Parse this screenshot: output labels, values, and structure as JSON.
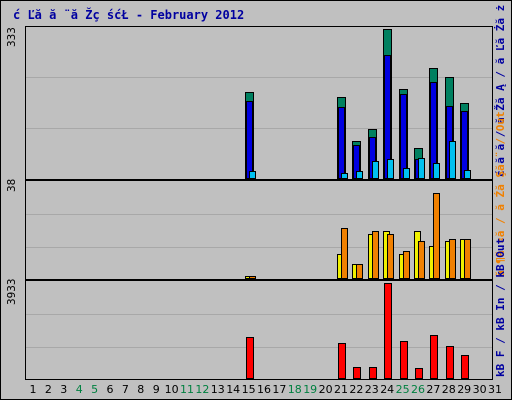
{
  "title": "ć Ľă  ă ¨ă Žç śćŁ  - February 2012",
  "colors": {
    "hits": "#0000e0",
    "files": "#008060",
    "pages": "#00c0f0",
    "visits": "#f0f000",
    "sites": "#f08000",
    "kbytes": "#ff0000",
    "weekend_label": "#008040"
  },
  "panels": {
    "top": {
      "ymax": "333"
    },
    "middle": {
      "ymax": "38"
    },
    "bottom": {
      "ymax": "3933"
    }
  },
  "right_labels": {
    "top": "ć ă ă  / ă Žă Ą / ă Ľă Żă ż",
    "middle": "ă ¶ă ¤ă  / ă Źă Şă ¨ / Out",
    "bottom": "kB F / kB In / kB Out"
  },
  "chart_data": {
    "type": "bar",
    "x": [
      1,
      2,
      3,
      4,
      5,
      6,
      7,
      8,
      9,
      10,
      11,
      12,
      13,
      14,
      15,
      16,
      17,
      18,
      19,
      20,
      21,
      22,
      23,
      24,
      25,
      26,
      27,
      28,
      29,
      30,
      31
    ],
    "weekend_days": [
      4,
      5,
      11,
      12,
      18,
      19,
      25,
      26
    ],
    "top": {
      "ylim": [
        0,
        333
      ],
      "series": [
        {
          "key": "files",
          "values": {
            "15": 193,
            "21": 183,
            "22": 84,
            "23": 110,
            "24": 333,
            "25": 200,
            "26": 68,
            "27": 246,
            "28": 226,
            "29": 168
          }
        },
        {
          "key": "hits",
          "values": {
            "15": 173,
            "21": 160,
            "22": 76,
            "23": 94,
            "24": 275,
            "25": 188,
            "26": 45,
            "27": 215,
            "28": 161,
            "29": 151
          }
        },
        {
          "key": "pages",
          "values": {
            "15": 18,
            "21": 14,
            "22": 18,
            "23": 41,
            "24": 45,
            "25": 25,
            "26": 46,
            "27": 35,
            "28": 85,
            "29": 21
          }
        }
      ]
    },
    "middle": {
      "ylim": [
        0,
        38
      ],
      "series": [
        {
          "key": "visits",
          "values": {
            "15": 1,
            "21": 10,
            "22": 6,
            "23": 18,
            "24": 19,
            "25": 10,
            "26": 19,
            "27": 13,
            "28": 15,
            "29": 16
          }
        },
        {
          "key": "sites",
          "values": {
            "15": 1,
            "21": 20,
            "22": 6,
            "23": 19,
            "24": 18,
            "25": 11,
            "26": 15,
            "27": 34,
            "28": 16,
            "29": 16
          }
        }
      ]
    },
    "bottom": {
      "ylim": [
        0,
        3933
      ],
      "series": [
        {
          "key": "kbytes",
          "values": {
            "15": 1710,
            "21": 1460,
            "22": 500,
            "23": 500,
            "24": 3933,
            "25": 1560,
            "26": 450,
            "27": 1790,
            "28": 1360,
            "29": 990
          }
        }
      ]
    }
  }
}
